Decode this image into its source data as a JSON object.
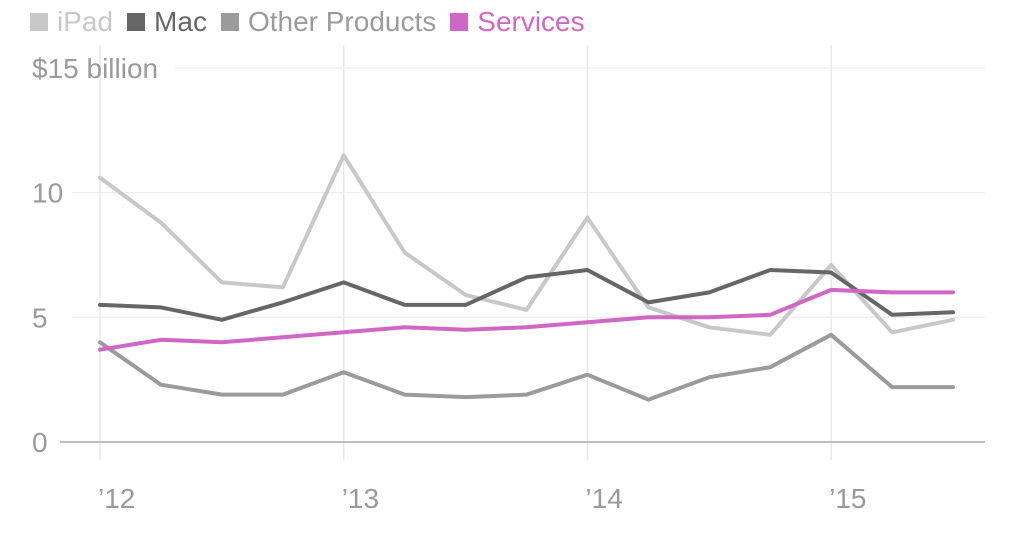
{
  "chart_data": {
    "type": "line",
    "y_unit_label": "$15 billion",
    "x_tick_labels": [
      "’12",
      "’13",
      "’14",
      "’15"
    ],
    "x_ticks": [
      2012,
      2013,
      2014,
      2015
    ],
    "x": [
      2012.0,
      2012.25,
      2012.5,
      2012.75,
      2013.0,
      2013.25,
      2013.5,
      2013.75,
      2014.0,
      2014.25,
      2014.5,
      2014.75,
      2015.0,
      2015.25,
      2015.5
    ],
    "y_ticks": [
      0,
      5,
      10,
      15
    ],
    "y_tick_labels": [
      "0",
      "5",
      "10",
      ""
    ],
    "ylim": [
      0,
      15
    ],
    "xlim": [
      2012.0,
      2015.5
    ],
    "grid": true,
    "legend_placement": "top-left",
    "series": [
      {
        "name": "iPad",
        "color": "#c8c8c8",
        "values": [
          10.6,
          8.8,
          6.4,
          6.2,
          11.5,
          7.6,
          5.9,
          5.3,
          9.0,
          5.4,
          4.6,
          4.3,
          7.1,
          4.4,
          4.9
        ]
      },
      {
        "name": "Mac",
        "color": "#666666",
        "values": [
          5.5,
          5.4,
          4.9,
          5.6,
          6.4,
          5.5,
          5.5,
          6.6,
          6.9,
          5.6,
          6.0,
          6.9,
          6.8,
          5.1,
          5.2
        ]
      },
      {
        "name": "Other Products",
        "color": "#9b9b9b",
        "values": [
          4.0,
          2.3,
          1.9,
          1.9,
          2.8,
          1.9,
          1.8,
          1.9,
          2.7,
          1.7,
          2.6,
          3.0,
          4.3,
          2.2,
          2.2
        ]
      },
      {
        "name": "Services",
        "color": "#d167c4",
        "values": [
          3.7,
          4.1,
          4.0,
          4.2,
          4.4,
          4.6,
          4.5,
          4.6,
          4.8,
          5.0,
          5.0,
          5.1,
          6.1,
          6.0,
          6.0
        ]
      }
    ]
  }
}
